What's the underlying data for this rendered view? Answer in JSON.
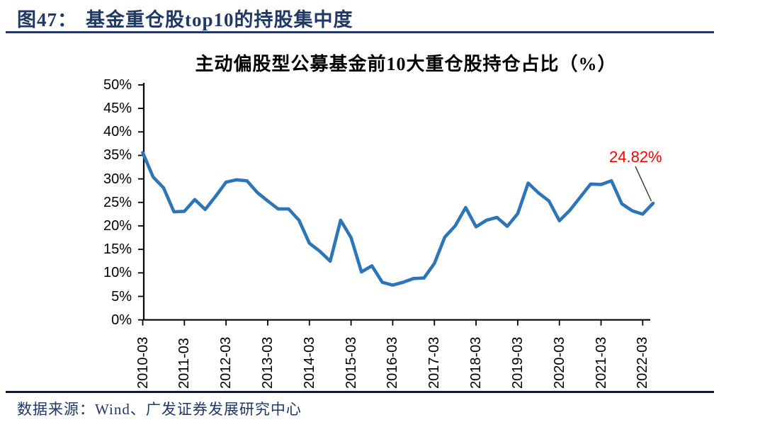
{
  "header": {
    "figure_label": "图47：",
    "title": "基金重仓股top10的持股集中度"
  },
  "chart_data": {
    "type": "line",
    "title": "主动偏股型公募基金前10大重仓股持仓占比（%）",
    "series_name": "前10大重仓股持仓占比",
    "x": [
      "2010-03",
      "2010-06",
      "2010-09",
      "2010-12",
      "2011-03",
      "2011-06",
      "2011-09",
      "2011-12",
      "2012-03",
      "2012-06",
      "2012-09",
      "2012-12",
      "2013-03",
      "2013-06",
      "2013-09",
      "2013-12",
      "2014-03",
      "2014-06",
      "2014-09",
      "2014-12",
      "2015-03",
      "2015-06",
      "2015-09",
      "2015-12",
      "2016-03",
      "2016-06",
      "2016-09",
      "2016-12",
      "2017-03",
      "2017-06",
      "2017-09",
      "2017-12",
      "2018-03",
      "2018-06",
      "2018-09",
      "2018-12",
      "2019-03",
      "2019-06",
      "2019-09",
      "2019-12",
      "2020-03",
      "2020-06",
      "2020-09",
      "2020-12",
      "2021-03",
      "2021-06",
      "2021-09",
      "2021-12",
      "2022-03",
      "2022-06"
    ],
    "values": [
      35.6,
      30.4,
      28.1,
      23.0,
      23.1,
      25.6,
      23.5,
      26.3,
      29.3,
      29.8,
      29.6,
      27.1,
      25.3,
      23.6,
      23.6,
      21.2,
      16.3,
      14.6,
      12.5,
      21.2,
      17.5,
      10.2,
      11.5,
      8.0,
      7.4,
      8.0,
      8.8,
      8.9,
      12.0,
      17.6,
      20.0,
      23.9,
      19.8,
      21.2,
      21.8,
      19.9,
      22.6,
      29.1,
      27.0,
      25.3,
      21.1,
      23.3,
      26.1,
      28.9,
      28.8,
      29.6,
      24.7,
      23.2,
      22.5,
      24.82
    ],
    "x_tick_labels": [
      "2010-03",
      "2011-03",
      "2012-03",
      "2013-03",
      "2014-03",
      "2015-03",
      "2016-03",
      "2017-03",
      "2018-03",
      "2019-03",
      "2020-03",
      "2021-03",
      "2022-03"
    ],
    "y_tick_labels": [
      "0%",
      "5%",
      "10%",
      "15%",
      "20%",
      "25%",
      "30%",
      "35%",
      "40%",
      "45%",
      "50%"
    ],
    "ylim": [
      0,
      50
    ],
    "grid": false,
    "legend": "none",
    "line_color": "#2E75B6",
    "axis_color": "#000000",
    "annotation": {
      "text": "24.82%",
      "color": "#FF0000",
      "target_x": "2022-06",
      "target_value": 24.82
    }
  },
  "footer": {
    "source": "数据来源：Wind、广发证券发展研究中心"
  }
}
